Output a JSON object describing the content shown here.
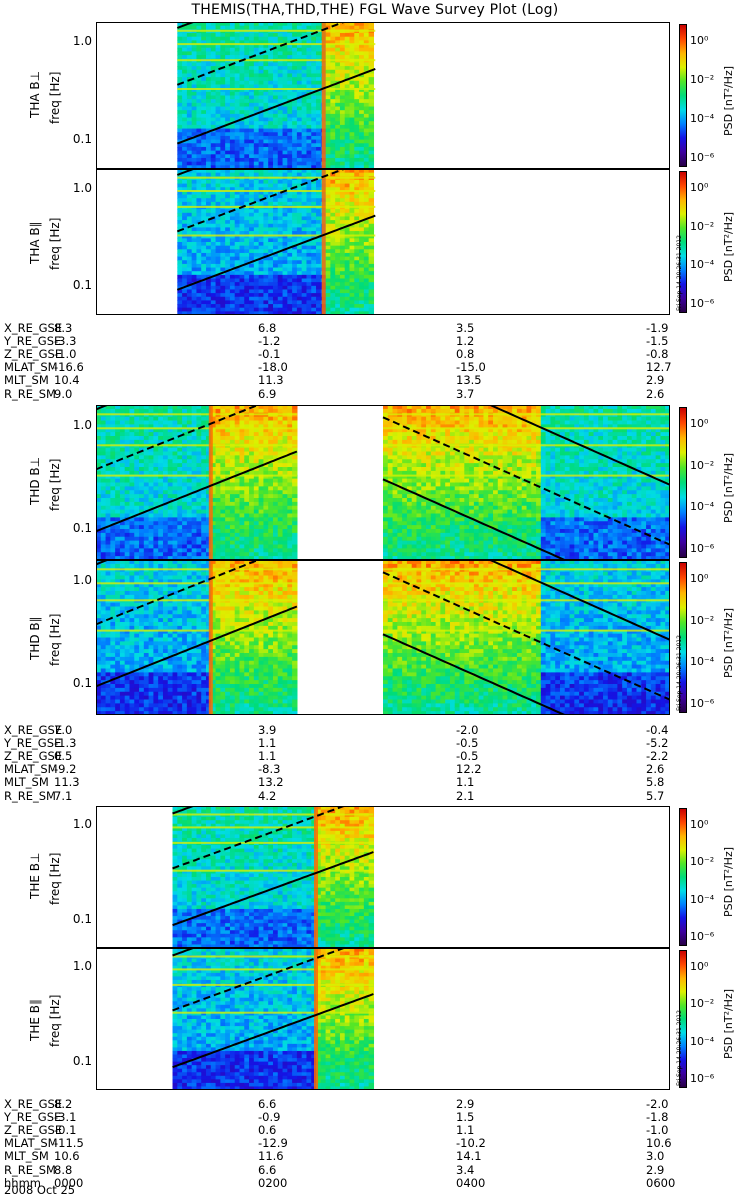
{
  "title": "THEMIS(THA,THD,THE) FGL Wave Survey Plot (Log)",
  "colorbar": {
    "label": "PSD [nT²/Hz]",
    "ticks": [
      "10⁰",
      "10⁻²",
      "10⁻⁴",
      "10⁻⁶"
    ],
    "stamp": "Fri Sep 14 20:26:31 2012"
  },
  "freq_axis": {
    "label": "freq [Hz]",
    "ticks": [
      "1.0",
      "0.1"
    ]
  },
  "chart_data": [
    {
      "type": "heatmap",
      "probe": "THA",
      "component": "THA B⊥",
      "ylabel": "freq [Hz]",
      "x_range": [
        "0000",
        "0600"
      ],
      "y_scale": "log",
      "y_range": [
        0.05,
        1.6
      ],
      "data_span_hours": [
        0.85,
        2.92
      ],
      "spike_hour": 2.38,
      "mode_change_hours": [
        2.38
      ]
    },
    {
      "type": "heatmap",
      "probe": "THA",
      "component": "THA B∥",
      "ylabel": "freq [Hz]",
      "x_range": [
        "0000",
        "0600"
      ],
      "y_scale": "log",
      "y_range": [
        0.05,
        1.6
      ],
      "data_span_hours": [
        0.85,
        2.92
      ],
      "spike_hour": 2.38,
      "mode_change_hours": [
        2.38
      ]
    },
    {
      "type": "heatmap",
      "probe": "THD",
      "component": "THD B⊥",
      "ylabel": "freq [Hz]",
      "x_range": [
        "0000",
        "0600"
      ],
      "y_scale": "log",
      "y_range": [
        0.05,
        1.6
      ],
      "data_span_hours": [
        [
          0,
          2.1
        ],
        [
          3.0,
          6.0
        ]
      ],
      "spike_hour": 1.2,
      "mode_change_hours": [
        1.2,
        4.65
      ]
    },
    {
      "type": "heatmap",
      "probe": "THD",
      "component": "THD B∥",
      "ylabel": "freq [Hz]",
      "x_range": [
        "0000",
        "0600"
      ],
      "y_scale": "log",
      "y_range": [
        0.05,
        1.6
      ],
      "data_span_hours": [
        [
          0,
          2.1
        ],
        [
          3.0,
          6.0
        ]
      ],
      "spike_hour": 1.2,
      "mode_change_hours": [
        1.2,
        4.65
      ]
    },
    {
      "type": "heatmap",
      "probe": "THE",
      "component": "THE B⊥",
      "ylabel": "freq [Hz]",
      "x_range": [
        "0000",
        "0600"
      ],
      "y_scale": "log",
      "y_range": [
        0.05,
        1.6
      ],
      "data_span_hours": [
        0.8,
        2.9
      ],
      "spike_hour": 2.3,
      "mode_change_hours": [
        2.3
      ]
    },
    {
      "type": "heatmap",
      "probe": "THE",
      "component": "THE B∥",
      "ylabel": "freq [Hz]",
      "x_range": [
        "0000",
        "0600"
      ],
      "y_scale": "log",
      "y_range": [
        0.05,
        1.6
      ],
      "data_span_hours": [
        0.8,
        2.9
      ],
      "spike_hour": 2.3,
      "mode_change_hours": [
        2.3
      ]
    }
  ],
  "ephemeris": [
    {
      "probe": "THA",
      "rows": [
        {
          "label": "X_RE_GSE",
          "values": [
            "8.3",
            "6.8",
            "3.5",
            "-1.9"
          ]
        },
        {
          "label": "Y_RE_GSE",
          "values": [
            "-3.3",
            "-1.2",
            "1.2",
            "-1.5"
          ]
        },
        {
          "label": "Z_RE_GSE",
          "values": [
            "-1.0",
            "-0.1",
            "0.8",
            "-0.8"
          ]
        },
        {
          "label": "MLAT_SM",
          "values": [
            "-16.6",
            "-18.0",
            "-15.0",
            "12.7"
          ]
        },
        {
          "label": "MLT_SM",
          "values": [
            "10.4",
            "11.3",
            "13.5",
            "2.9"
          ]
        },
        {
          "label": "R_RE_SM",
          "values": [
            "9.0",
            "6.9",
            "3.7",
            "2.6"
          ]
        }
      ]
    },
    {
      "probe": "THD",
      "rows": [
        {
          "label": "X_RE_GSE",
          "values": [
            "7.0",
            "3.9",
            "-2.0",
            "-0.4"
          ]
        },
        {
          "label": "Y_RE_GSE",
          "values": [
            "-1.3",
            "1.1",
            "-0.5",
            "-5.2"
          ]
        },
        {
          "label": "Z_RE_GSE",
          "values": [
            "0.5",
            "1.1",
            "-0.5",
            "-2.2"
          ]
        },
        {
          "label": "MLAT_SM",
          "values": [
            "-9.2",
            "-8.3",
            "12.2",
            "2.6"
          ]
        },
        {
          "label": "MLT_SM",
          "values": [
            "11.3",
            "13.2",
            "1.1",
            "5.8"
          ]
        },
        {
          "label": "R_RE_SM",
          "values": [
            "7.1",
            "4.2",
            "2.1",
            "5.7"
          ]
        }
      ]
    },
    {
      "probe": "THE",
      "rows": [
        {
          "label": "X_RE_GSE",
          "values": [
            "8.2",
            "6.6",
            "2.9",
            "-2.0"
          ]
        },
        {
          "label": "Y_RE_GSE",
          "values": [
            "-3.1",
            "-0.9",
            "1.5",
            "-1.8"
          ]
        },
        {
          "label": "Z_RE_GSE",
          "values": [
            "-0.1",
            "0.6",
            "1.1",
            "-1.0"
          ]
        },
        {
          "label": "MLAT_SM",
          "values": [
            "-11.5",
            "-12.9",
            "-10.2",
            "10.6"
          ]
        },
        {
          "label": "MLT_SM",
          "values": [
            "10.6",
            "11.6",
            "14.1",
            "3.0"
          ]
        },
        {
          "label": "R_RE_SM",
          "values": [
            "8.8",
            "6.6",
            "3.4",
            "2.9"
          ]
        },
        {
          "label": "hhmm",
          "values": [
            "0000",
            "0200",
            "0400",
            "0600"
          ]
        }
      ]
    }
  ],
  "date": "2008 Oct 25"
}
